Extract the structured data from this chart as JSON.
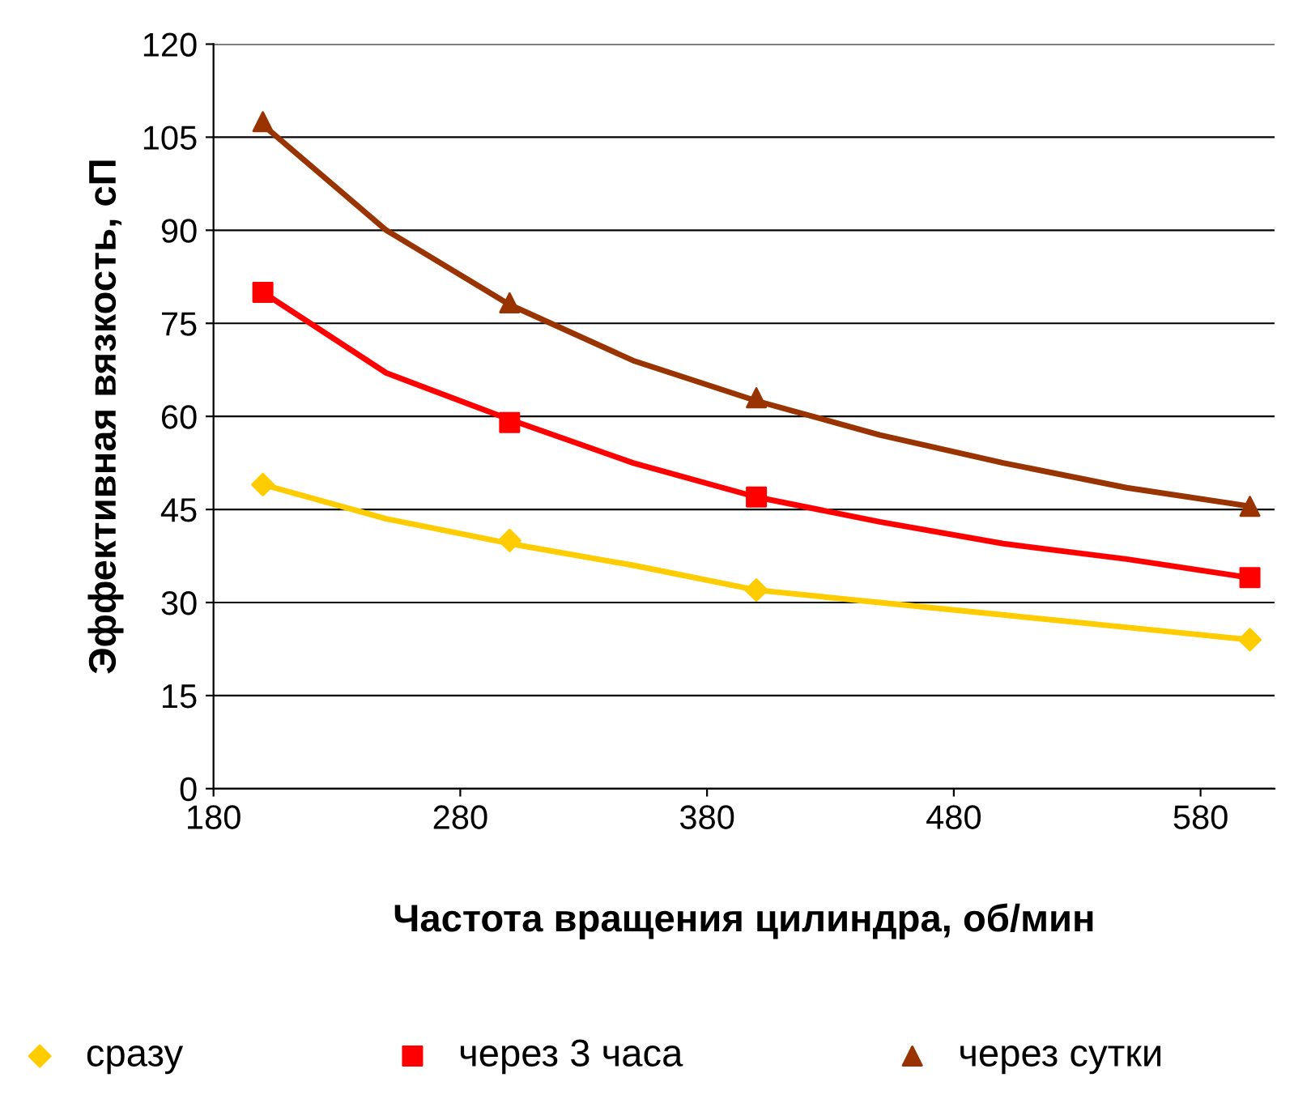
{
  "chart_data": {
    "type": "scatter",
    "xlabel": "Частота вращения цилиндра, об/мин",
    "ylabel": "Эффективная вязкость, сП",
    "xlim": [
      180,
      610
    ],
    "xticks": [
      180,
      280,
      380,
      480,
      580
    ],
    "ylim": [
      0,
      120
    ],
    "yticks": [
      0,
      15,
      30,
      45,
      60,
      75,
      90,
      105,
      120
    ],
    "grid": "y",
    "legend": "bottom",
    "series": [
      {
        "type": "line",
        "color": "#ffcc00",
        "marker": "none",
        "x": [
          200,
          250,
          300,
          350,
          400,
          450,
          500,
          550,
          600
        ],
        "values": [
          49,
          43.5,
          39.5,
          36,
          32,
          30,
          28,
          26,
          24
        ]
      },
      {
        "type": "line",
        "color": "#ff0000",
        "marker": "none",
        "x": [
          200,
          250,
          300,
          350,
          400,
          450,
          500,
          550,
          600
        ],
        "values": [
          80,
          67,
          59.5,
          52.5,
          47,
          43,
          39.5,
          37,
          34
        ]
      },
      {
        "type": "line",
        "color": "#993300",
        "marker": "none",
        "x": [
          200,
          250,
          300,
          350,
          400,
          450,
          500,
          550,
          600
        ],
        "values": [
          107,
          90,
          78,
          69,
          62.5,
          57,
          52.5,
          48.5,
          45.5
        ]
      },
      {
        "name": "сразу",
        "color": "#ffcc00",
        "marker": "diamond",
        "x": [
          200,
          300,
          400,
          600
        ],
        "values": [
          49,
          40,
          32,
          24
        ]
      },
      {
        "name": "через 3 часа",
        "color": "#ff0000",
        "marker": "square",
        "x": [
          200,
          300,
          400,
          600
        ],
        "values": [
          80,
          59,
          47,
          34
        ]
      },
      {
        "name": "через сутки",
        "color": "#993300",
        "marker": "triangle",
        "x": [
          200,
          300,
          400,
          600
        ],
        "values": [
          107.5,
          78.3,
          63,
          45.5
        ]
      }
    ]
  }
}
